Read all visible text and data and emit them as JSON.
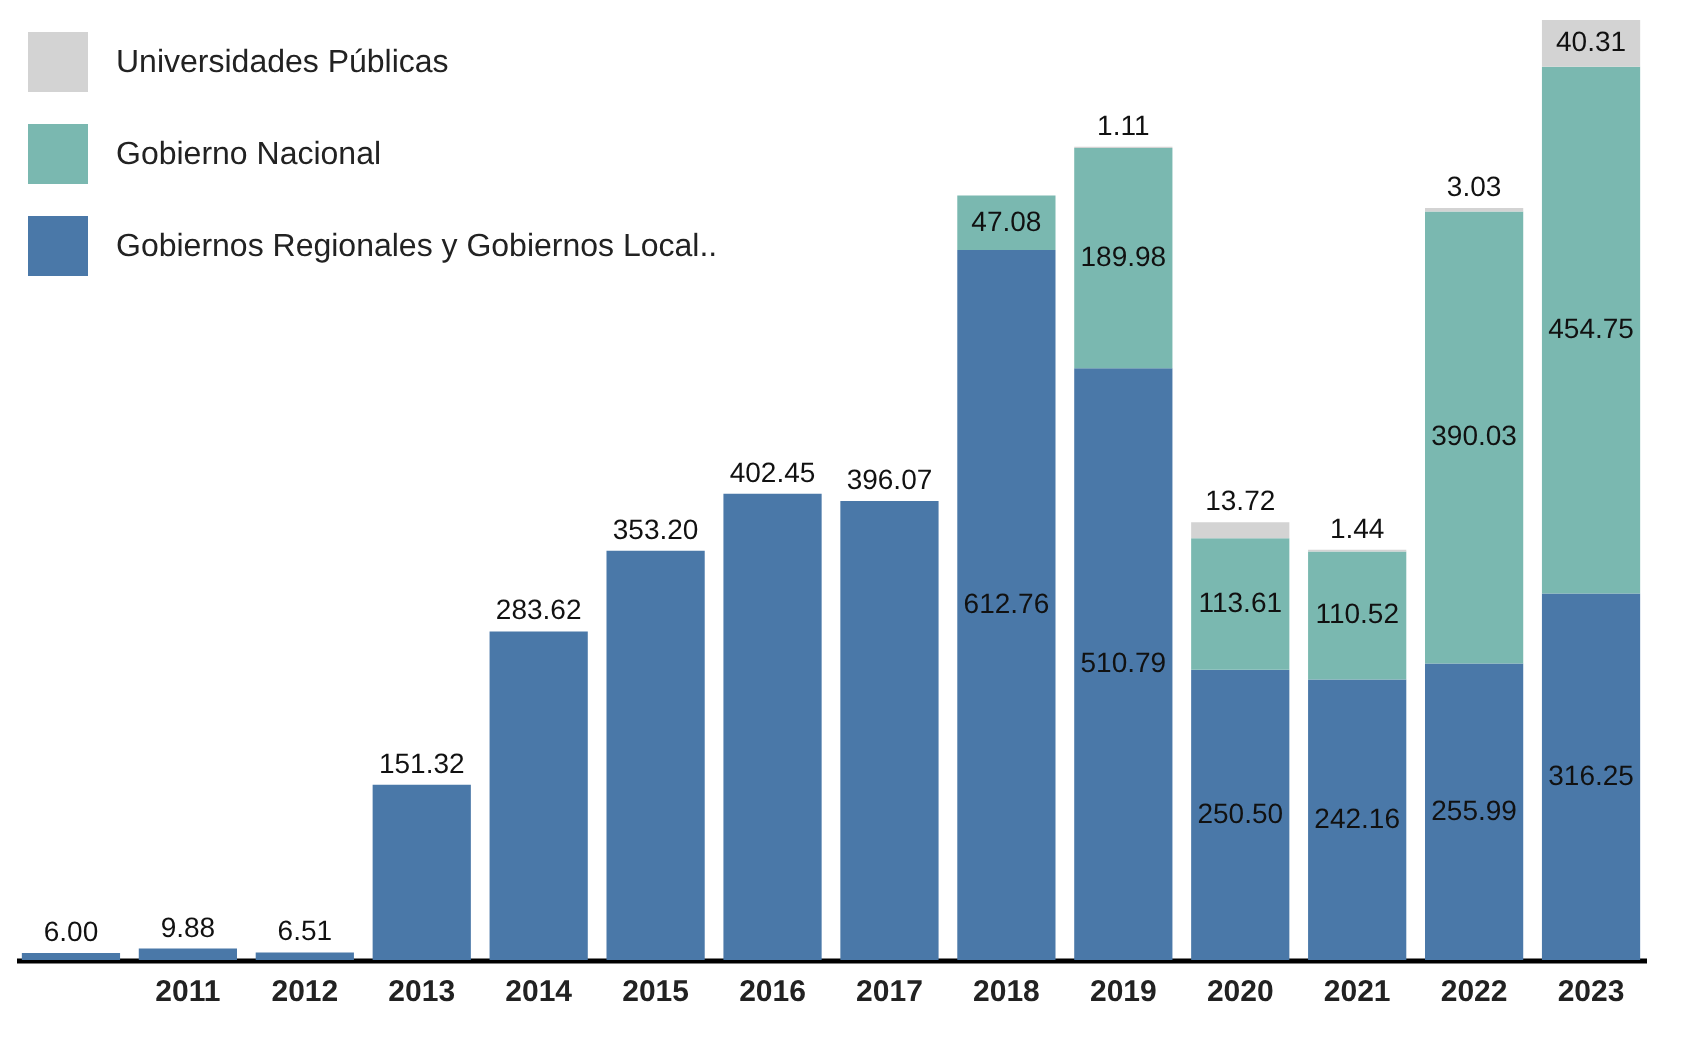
{
  "chart_data": {
    "type": "bar",
    "stacked": true,
    "categories": [
      null,
      "2011",
      "2012",
      "2013",
      "2014",
      "2015",
      "2016",
      "2017",
      "2018",
      "2019",
      "2020",
      "2021",
      "2022",
      "2023"
    ],
    "series": [
      {
        "name": "Gobiernos Regionales y Gobiernos Local..",
        "color": "#4a78a8",
        "values": [
          6.0,
          9.88,
          6.51,
          151.32,
          283.62,
          353.2,
          402.45,
          396.07,
          612.76,
          510.79,
          250.5,
          242.16,
          255.99,
          316.25
        ],
        "value_labels": [
          "6.00",
          "9.88",
          "6.51",
          "151.32",
          "283.62",
          "353.20",
          "402.45",
          "396.07",
          "612.76",
          "510.79",
          "250.50",
          "242.16",
          "255.99",
          "316.25"
        ]
      },
      {
        "name": "Gobierno Nacional",
        "color": "#7ab8b0",
        "values": [
          null,
          null,
          null,
          null,
          null,
          null,
          null,
          null,
          47.08,
          189.98,
          113.61,
          110.52,
          390.03,
          454.75
        ],
        "value_labels": [
          null,
          null,
          null,
          null,
          null,
          null,
          null,
          null,
          "47.08",
          "189.98",
          "113.61",
          "110.52",
          "390.03",
          "454.75"
        ]
      },
      {
        "name": "Universidades Públicas",
        "color": "#d3d3d3",
        "values": [
          null,
          null,
          null,
          null,
          null,
          null,
          null,
          null,
          null,
          1.11,
          13.72,
          1.44,
          3.03,
          40.31
        ],
        "value_labels": [
          null,
          null,
          null,
          null,
          null,
          null,
          null,
          null,
          null,
          "1.11",
          "13.72",
          "1.44",
          "3.03",
          "40.31"
        ]
      }
    ],
    "legend": "top left"
  }
}
